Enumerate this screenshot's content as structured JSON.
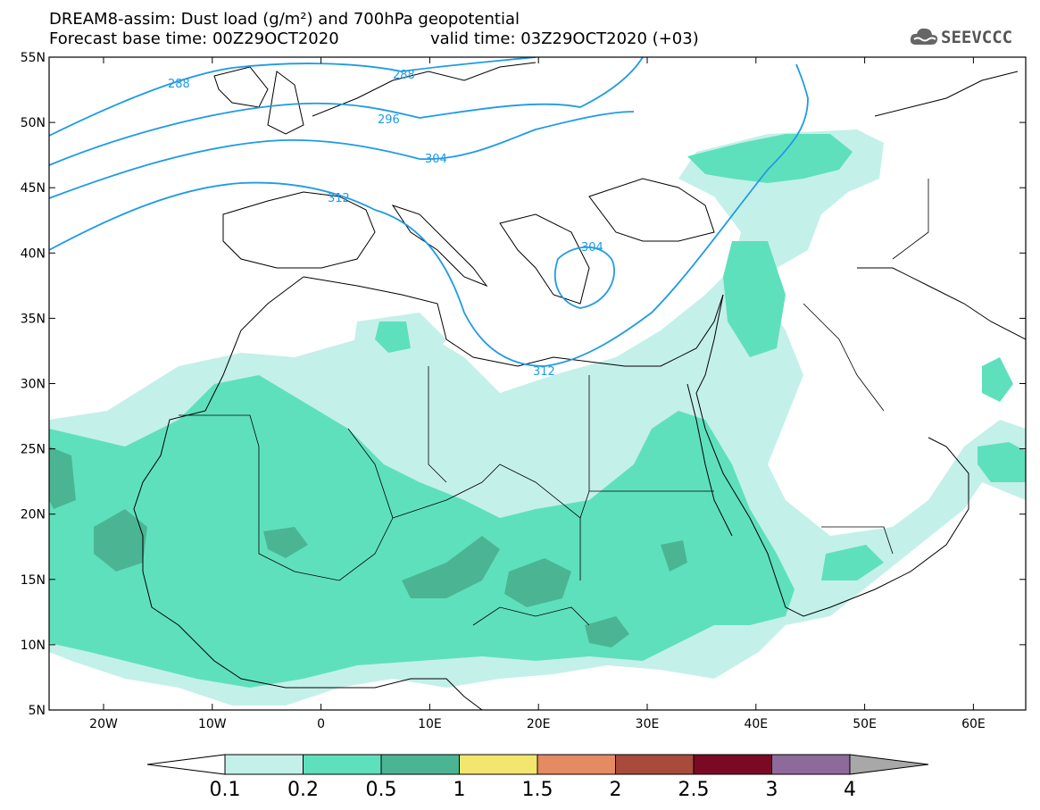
{
  "title": {
    "line1": "DREAM8-assim: Dust load (g/m²) and 700hPa geopotential",
    "line2": "Forecast base time: 00Z29OCT2020",
    "valid": "valid time: 03Z29OCT2020 (+03)"
  },
  "logo": {
    "text": "SEEVCCC",
    "icon": "cloud-icon"
  },
  "axes": {
    "lat_labels": [
      "55N",
      "50N",
      "45N",
      "40N",
      "35N",
      "30N",
      "25N",
      "20N",
      "15N",
      "10N",
      "5N"
    ],
    "lon_labels": [
      "20W",
      "10W",
      "0",
      "10E",
      "20E",
      "30E",
      "40E",
      "50E",
      "60E"
    ]
  },
  "contours": {
    "labels": [
      "288",
      "288",
      "296",
      "304",
      "312",
      "304",
      "312"
    ],
    "color": "#1e9be6"
  },
  "colorbar": {
    "labels": [
      "0.1",
      "0.2",
      "0.5",
      "1",
      "1.5",
      "2",
      "2.5",
      "3",
      "4"
    ],
    "colors": [
      "#c4f0ea",
      "#5fe0bc",
      "#4bb593",
      "#f2e66e",
      "#e58a62",
      "#a84a3c",
      "#7a0a24",
      "#8e6a9a"
    ],
    "below_color": "#ffffff",
    "above_color": "#a8a8a8"
  }
}
